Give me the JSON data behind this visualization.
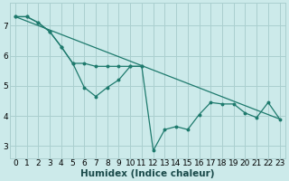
{
  "xlabel": "Humidex (Indice chaleur)",
  "bg_color": "#cceaea",
  "grid_color": "#aacfcf",
  "line_color": "#1e7a6d",
  "line1_x": [
    0,
    1,
    2,
    3,
    4,
    5,
    6,
    7,
    8,
    9,
    10,
    11
  ],
  "line1_y": [
    7.3,
    7.3,
    7.1,
    6.8,
    6.3,
    5.75,
    4.95,
    4.65,
    4.95,
    5.2,
    5.65,
    5.65
  ],
  "line2_x": [
    0,
    1,
    2,
    3,
    4,
    5,
    6,
    7,
    8,
    9,
    10,
    11,
    12,
    13,
    14,
    15,
    16,
    17,
    18,
    19,
    20,
    21,
    22,
    23
  ],
  "line2_y": [
    7.3,
    7.3,
    7.1,
    6.8,
    6.3,
    5.75,
    5.75,
    5.65,
    5.65,
    5.65,
    5.65,
    5.65,
    2.85,
    3.55,
    3.65,
    3.55,
    4.05,
    4.45,
    4.4,
    4.4,
    4.1,
    3.95,
    4.45,
    3.9
  ],
  "trend_x": [
    0,
    23
  ],
  "trend_y": [
    7.3,
    3.9
  ],
  "xlim": [
    -0.5,
    23.5
  ],
  "ylim": [
    2.6,
    7.75
  ],
  "xticks": [
    0,
    1,
    2,
    3,
    4,
    5,
    6,
    7,
    8,
    9,
    10,
    11,
    12,
    13,
    14,
    15,
    16,
    17,
    18,
    19,
    20,
    21,
    22,
    23
  ],
  "yticks": [
    3,
    4,
    5,
    6,
    7
  ],
  "tick_fontsize": 6.5,
  "xlabel_fontsize": 7.5
}
